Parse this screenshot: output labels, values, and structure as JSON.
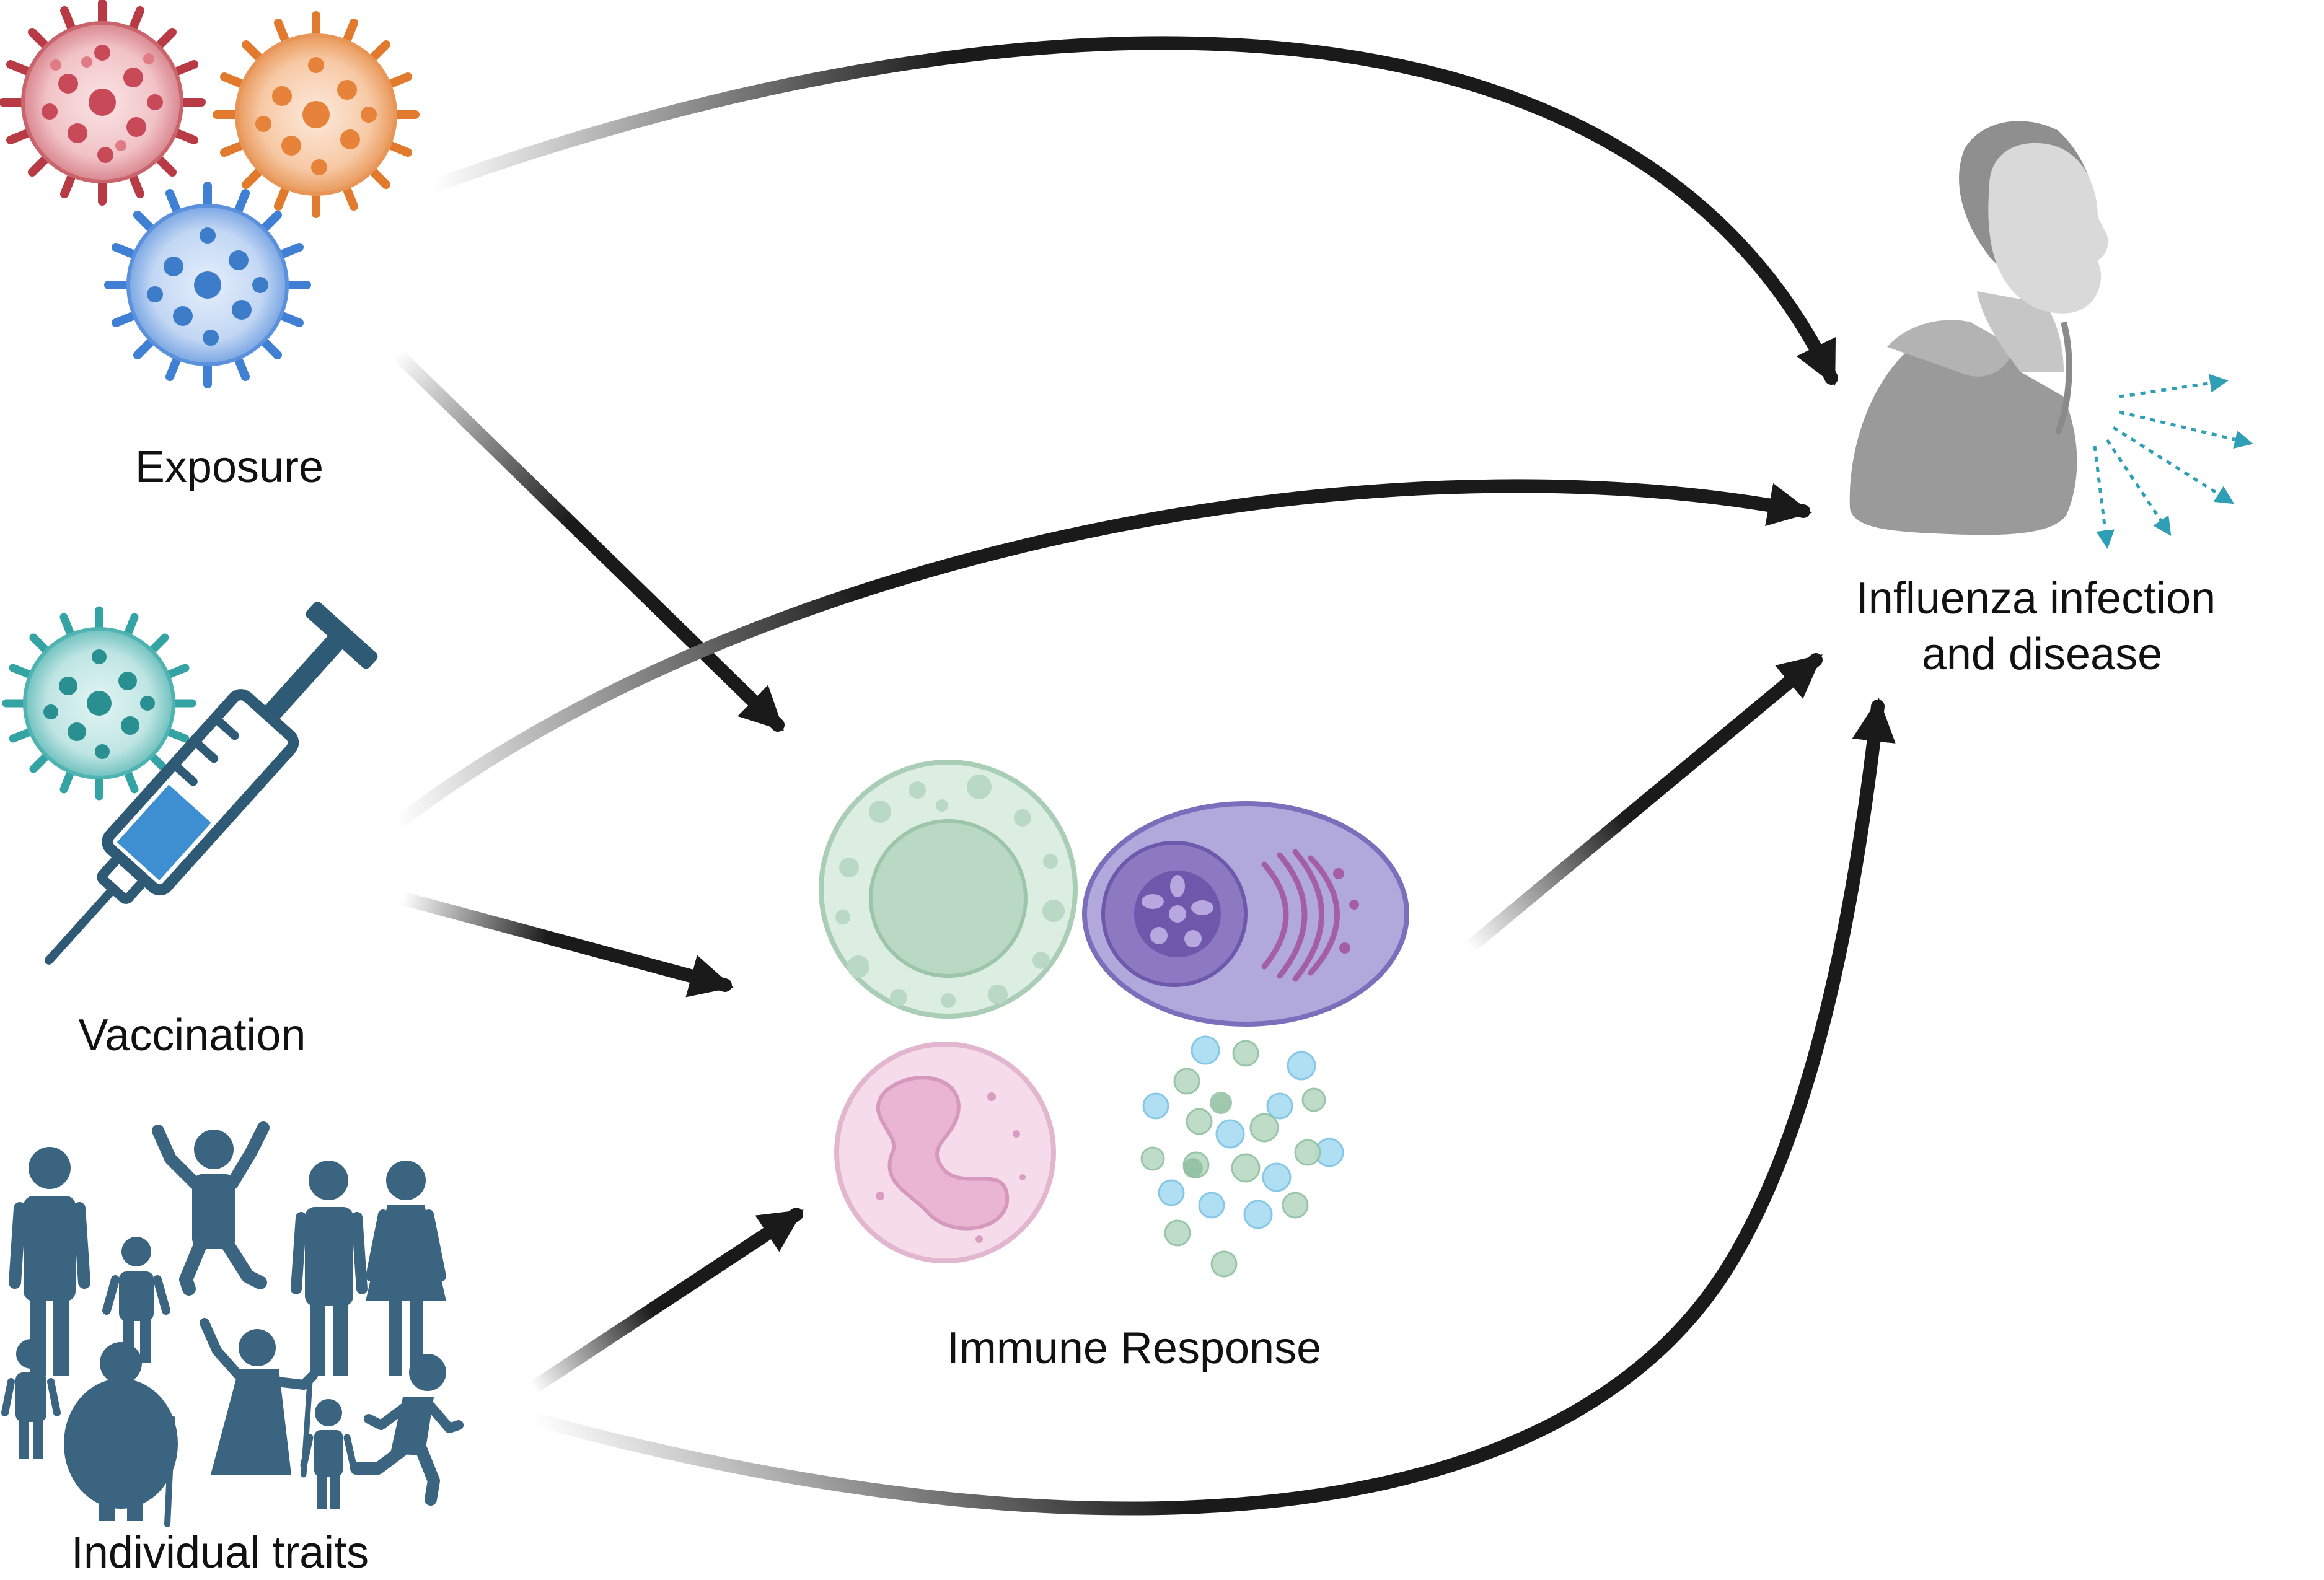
{
  "nodes": {
    "exposure": {
      "label": "Exposure",
      "icon": "influenza-virus-icons",
      "colors": [
        "#c0444a",
        "#e8843a",
        "#3f82d6"
      ]
    },
    "vaccination": {
      "label": "Vaccination",
      "icon": "syringe-icon",
      "colors": [
        "#3aa7a8",
        "#2e5a75",
        "#3d8fd1"
      ]
    },
    "individual_traits": {
      "label": "Individual traits",
      "icon": "people-icon",
      "colors": [
        "#3b6480"
      ]
    },
    "immune_response": {
      "label": "Immune Response",
      "icon": "immune-cells-icon",
      "colors": [
        "#b7d7c2",
        "#8f83c8",
        "#f0c8de",
        "#7cc3e5"
      ]
    },
    "outcome": {
      "label_lines": [
        "Influenza infection",
        "and disease"
      ],
      "icon": "coughing-person-icon",
      "colors": [
        "#8a8a8a",
        "#2e9fb5"
      ]
    }
  },
  "edges": [
    {
      "from": "exposure",
      "to": "outcome"
    },
    {
      "from": "exposure",
      "to": "immune_response"
    },
    {
      "from": "vaccination",
      "to": "outcome"
    },
    {
      "from": "vaccination",
      "to": "immune_response"
    },
    {
      "from": "individual_traits",
      "to": "immune_response"
    },
    {
      "from": "individual_traits",
      "to": "outcome"
    },
    {
      "from": "immune_response",
      "to": "outcome"
    }
  ],
  "colors": {
    "arrow": "#1a1a1a",
    "arrow_fade": "#ffffff",
    "text": "#111111"
  }
}
